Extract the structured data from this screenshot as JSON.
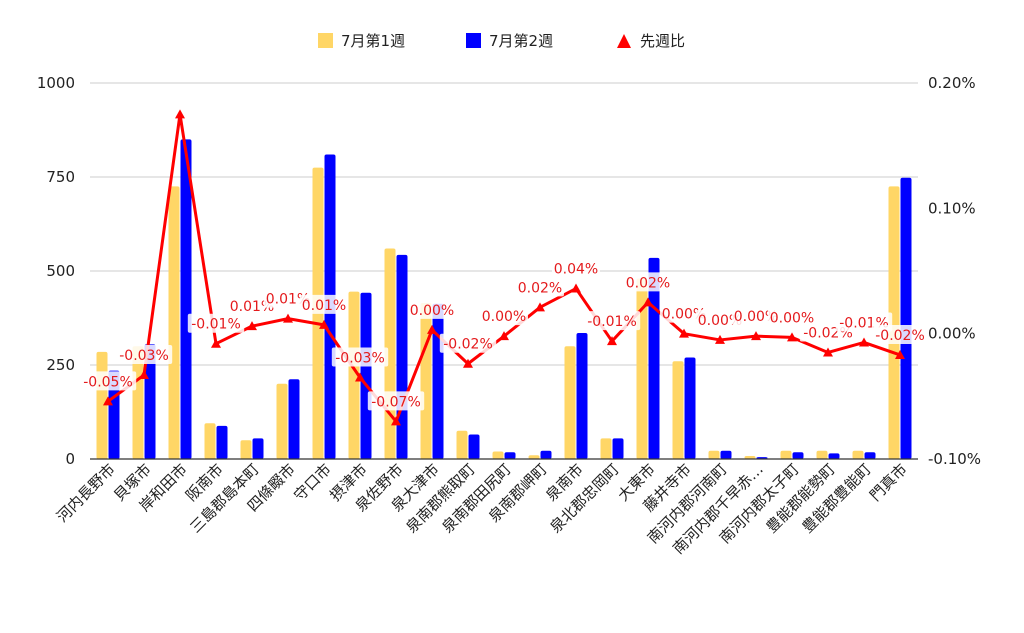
{
  "colors": {
    "week1": "#FFD666",
    "week2": "#0000FF",
    "ratio": "#FF0000",
    "grid": "#CCCCCC",
    "baseline": "#333333"
  },
  "chart_data": {
    "type": "bar",
    "legend_position": "top",
    "grid": true,
    "categories": [
      "河内長野市",
      "貝塚市",
      "岸和田市",
      "阪南市",
      "三島郡島本町",
      "四條畷市",
      "守口市",
      "摂津市",
      "泉佐野市",
      "泉大津市",
      "泉南郡熊取町",
      "泉南郡田尻町",
      "泉南郡岬町",
      "泉南市",
      "泉北郡忠岡町",
      "大東市",
      "藤井寺市",
      "南河内郡河南町",
      "南河内郡千早赤…",
      "南河内郡太子町",
      "豊能郡能勢町",
      "豊能郡豊能町",
      "門真市"
    ],
    "series": [
      {
        "name": "7月第1週",
        "type": "bar",
        "axis": "left",
        "values": [
          285,
          300,
          725,
          95,
          50,
          200,
          775,
          445,
          560,
          415,
          75,
          20,
          10,
          300,
          55,
          480,
          260,
          22,
          8,
          22,
          22,
          22,
          725
        ]
      },
      {
        "name": "7月第2週",
        "type": "bar",
        "axis": "left",
        "values": [
          235,
          305,
          850,
          88,
          55,
          212,
          810,
          442,
          543,
          413,
          65,
          18,
          22,
          335,
          55,
          535,
          270,
          22,
          5,
          18,
          15,
          18,
          748
        ]
      },
      {
        "name": "先週比",
        "type": "line",
        "axis": "right",
        "marker": "triangle",
        "values": [
          -0.0005,
          -0.0003,
          0.0017,
          -0.0001,
          0.0001,
          0.0001,
          0.0001,
          -0.0003,
          -0.0007,
          0.0,
          -0.0002,
          0.0,
          0.0002,
          0.0004,
          -0.0001,
          0.0002,
          0.0,
          0.0,
          0.0,
          0.0,
          -0.0002,
          -0.0001,
          -0.0002
        ],
        "plot_values": [
          -0.00054,
          -0.00033,
          0.00175,
          -8e-05,
          6e-05,
          0.00012,
          7e-05,
          -0.00035,
          -0.0007,
          3e-05,
          -0.00024,
          -2e-05,
          0.00021,
          0.00036,
          -6e-05,
          0.00025,
          0.0,
          -5e-05,
          -2e-05,
          -3e-05,
          -0.00015,
          -7e-05,
          -0.00017
        ],
        "labels": [
          "-0.05%",
          "-0.03%",
          "",
          "-0.01%",
          "0.01%",
          "0.01%",
          "0.01%",
          "-0.03%",
          "-0.07%",
          "0.00%",
          "-0.02%",
          "0.00%",
          "0.02%",
          "0.04%",
          "-0.01%",
          "0.02%",
          "0.00%",
          "0.00%",
          "0.00%",
          "0.00%",
          "-0.02%",
          "-0.01%",
          "-0.02%"
        ]
      }
    ],
    "left_axis": {
      "ylim": [
        0,
        1000
      ],
      "ticks": [
        0,
        250,
        500,
        750,
        1000
      ],
      "tick_labels": [
        "0",
        "250",
        "500",
        "750",
        "1000"
      ]
    },
    "right_axis": {
      "ylim": [
        -0.001,
        0.002
      ],
      "ticks": [
        -0.001,
        0,
        0.001,
        0.002
      ],
      "tick_labels": [
        "-0.10%",
        "0.00%",
        "0.10%",
        "0.20%"
      ]
    }
  }
}
